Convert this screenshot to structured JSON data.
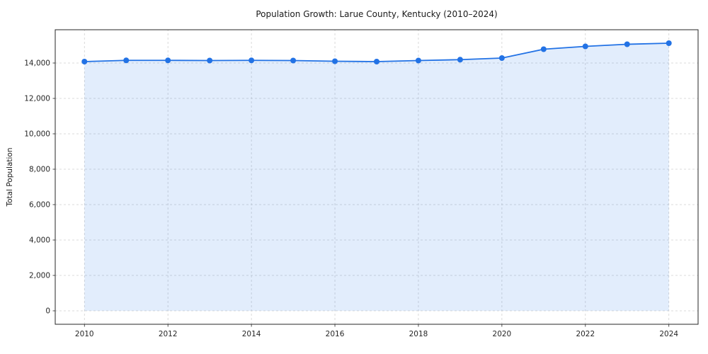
{
  "chart_data": {
    "type": "line",
    "title": "Population Growth: Larue County, Kentucky (2010–2024)",
    "xlabel": "",
    "ylabel": "Total Population",
    "x": [
      2010,
      2011,
      2012,
      2013,
      2014,
      2015,
      2016,
      2017,
      2018,
      2019,
      2020,
      2021,
      2022,
      2023,
      2024
    ],
    "series": [
      {
        "name": "Total Population",
        "values": [
          14080,
          14150,
          14150,
          14140,
          14150,
          14140,
          14100,
          14080,
          14140,
          14190,
          14280,
          14780,
          14940,
          15060,
          15120
        ]
      }
    ],
    "x_ticks": [
      2010,
      2012,
      2014,
      2016,
      2018,
      2020,
      2022,
      2024
    ],
    "y_ticks": [
      0,
      2000,
      4000,
      6000,
      8000,
      10000,
      12000,
      14000
    ],
    "xlim": [
      2009.3,
      2024.7
    ],
    "ylim": [
      -760,
      15880
    ],
    "grid": true,
    "legend": "none",
    "line_color": "#2272e5",
    "fill_color": "#2272e5",
    "fill_opacity": 0.13,
    "grid_color": "#d0d0d0",
    "axis_color": "#262626",
    "marker": "circle",
    "area_fill": true,
    "fill_baseline": 0
  }
}
